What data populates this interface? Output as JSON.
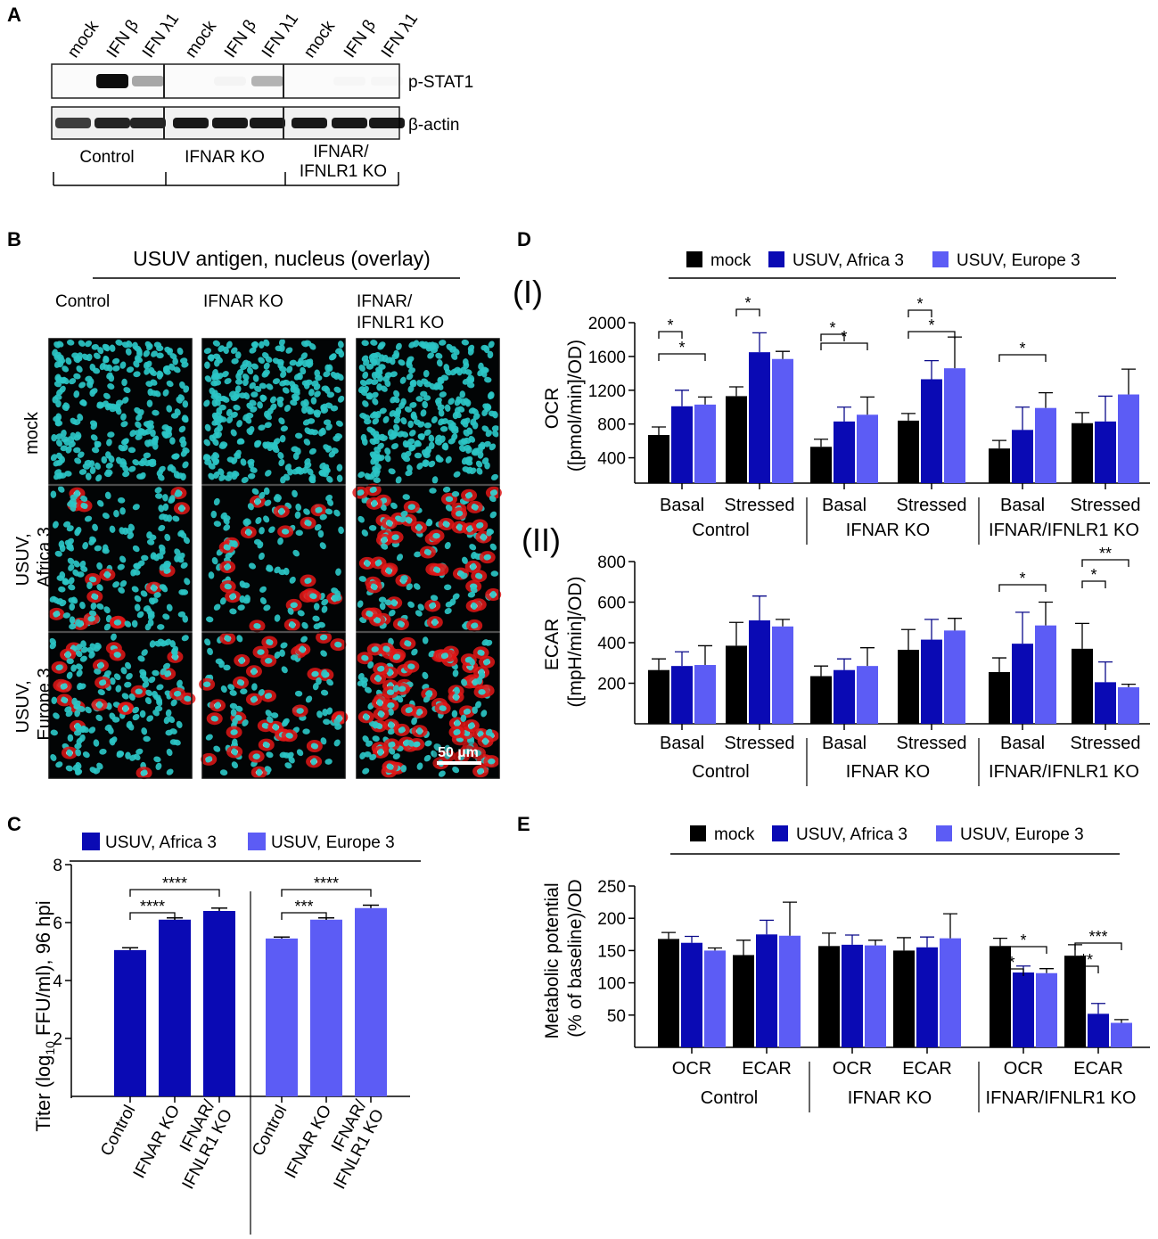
{
  "colors": {
    "mock": "#000000",
    "africa": "#0a0ab4",
    "europe": "#5c5cf5",
    "nucleus": "#2bc6c6",
    "antigen": "#e01818"
  },
  "panels": {
    "A": {
      "letter": "A",
      "lanes": [
        "mock",
        "IFN β",
        "IFN λ1",
        "mock",
        "IFN β",
        "IFN λ1",
        "mock",
        "IFN β",
        "IFN λ1"
      ],
      "blots": [
        "p-STAT1",
        "β-actin"
      ],
      "groups": [
        "Control",
        "IFNAR KO",
        "IFNAR/ IFNLR1 KO"
      ],
      "pstat1_intensity": [
        0,
        1.0,
        0.35,
        0,
        0.03,
        0.3,
        0,
        0.02,
        0.02
      ],
      "actin_intensity": [
        0.75,
        0.85,
        0.85,
        0.9,
        0.9,
        0.9,
        0.9,
        0.9,
        0.9
      ]
    },
    "B": {
      "letter": "B",
      "title": "USUV antigen, nucleus (overlay)",
      "columns": [
        "Control",
        "IFNAR KO",
        "IFNAR/ IFNLR1 KO"
      ],
      "rows": [
        "mock",
        "USUV, Africa 3",
        "USUV, Europe 3"
      ],
      "scale_bar": "50 µm"
    },
    "C": {
      "letter": "C",
      "legend": [
        "USUV, Africa 3",
        "USUV, Europe 3"
      ],
      "ylabel": "Titer (log10 FFU/ml), 96 hpi",
      "categories": [
        "Control",
        "IFNAR KO",
        "IFNAR/ IFNLR1 KO"
      ],
      "significance": [
        "****",
        "****",
        "***",
        "****"
      ]
    },
    "D": {
      "letter": "D",
      "legend": [
        "mock",
        "USUV, Africa 3",
        "USUV, Europe 3"
      ],
      "sub1": "(I)",
      "sub2": "(II)",
      "ylabel1": "OCR ([pmol/min]/OD)",
      "ylabel2": "ECAR ([mpH/min]/OD)",
      "conditions": [
        "Basal",
        "Stressed",
        "Basal",
        "Stressed",
        "Basal",
        "Stressed"
      ],
      "groups": [
        "Control",
        "IFNAR KO",
        "IFNAR/IFNLR1 KO"
      ]
    },
    "E": {
      "letter": "E",
      "legend": [
        "mock",
        "USUV, Africa 3",
        "USUV, Europe 3"
      ],
      "ylabel": "Metabolic potential (% of baseline)/OD",
      "conditions": [
        "OCR",
        "ECAR",
        "OCR",
        "ECAR",
        "OCR",
        "ECAR"
      ],
      "groups": [
        "Control",
        "IFNAR KO",
        "IFNAR/IFNLR1 KO"
      ]
    }
  },
  "chart_data": [
    {
      "id": "C",
      "type": "bar",
      "title": "",
      "ylabel": "Titer (log10 FFU/ml), 96 hpi",
      "ylim": [
        0,
        8
      ],
      "yticks": [
        2,
        4,
        6,
        8
      ],
      "categories": [
        "Control",
        "IFNAR KO",
        "IFNAR/ IFNLR1 KO"
      ],
      "series": [
        {
          "name": "USUV, Africa 3",
          "values": [
            5.05,
            6.1,
            6.4
          ],
          "errors": [
            0.08,
            0.06,
            0.1
          ]
        },
        {
          "name": "USUV, Europe 3",
          "values": [
            5.45,
            6.1,
            6.5
          ],
          "errors": [
            0.05,
            0.06,
            0.1
          ]
        }
      ],
      "annotations": [
        {
          "series": "USUV, Africa 3",
          "from": 0,
          "to": 1,
          "label": "****"
        },
        {
          "series": "USUV, Africa 3",
          "from": 0,
          "to": 2,
          "label": "****"
        },
        {
          "series": "USUV, Europe 3",
          "from": 0,
          "to": 1,
          "label": "***"
        },
        {
          "series": "USUV, Europe 3",
          "from": 0,
          "to": 2,
          "label": "****"
        }
      ]
    },
    {
      "id": "D-I",
      "type": "bar",
      "title": "(I)",
      "ylabel": "OCR ([pmol/min]/OD)",
      "ylim": [
        100,
        2000
      ],
      "yticks": [
        400,
        800,
        1200,
        1600,
        2000
      ],
      "categories": [
        "Control Basal",
        "Control Stressed",
        "IFNAR KO Basal",
        "IFNAR KO Stressed",
        "IFNAR/IFNLR1 KO Basal",
        "IFNAR/IFNLR1 KO Stressed"
      ],
      "series": [
        {
          "name": "mock",
          "values": [
            670,
            1130,
            530,
            840,
            510,
            810
          ],
          "errors": [
            95,
            110,
            90,
            85,
            95,
            125
          ]
        },
        {
          "name": "USUV, Africa 3",
          "values": [
            1010,
            1650,
            830,
            1330,
            730,
            830
          ],
          "errors": [
            190,
            230,
            170,
            220,
            270,
            300
          ]
        },
        {
          "name": "USUV, Europe 3",
          "values": [
            1030,
            1570,
            910,
            1460,
            990,
            1150
          ],
          "errors": [
            90,
            90,
            210,
            370,
            180,
            300
          ]
        }
      ],
      "annotations": [
        {
          "group": 0,
          "from": "mock",
          "to": "USUV, Africa 3",
          "label": "*"
        },
        {
          "group": 0,
          "from": "mock",
          "to": "USUV, Europe 3",
          "label": "*"
        },
        {
          "group": 1,
          "from": "mock",
          "to": "USUV, Africa 3",
          "label": "*"
        },
        {
          "group": 2,
          "from": "mock",
          "to": "USUV, Africa 3",
          "label": "*"
        },
        {
          "group": 2,
          "from": "mock",
          "to": "USUV, Europe 3",
          "label": "*"
        },
        {
          "group": 3,
          "from": "mock",
          "to": "USUV, Africa 3",
          "label": "*"
        },
        {
          "group": 3,
          "from": "mock",
          "to": "USUV, Europe 3",
          "label": "*"
        },
        {
          "group": 4,
          "from": "mock",
          "to": "USUV, Europe 3",
          "label": "*"
        }
      ]
    },
    {
      "id": "D-II",
      "type": "bar",
      "title": "(II)",
      "ylabel": "ECAR ([mpH/min]/OD)",
      "ylim": [
        0,
        800
      ],
      "yticks": [
        200,
        400,
        600,
        800
      ],
      "categories": [
        "Control Basal",
        "Control Stressed",
        "IFNAR KO Basal",
        "IFNAR KO Stressed",
        "IFNAR/IFNLR1 KO Basal",
        "IFNAR/IFNLR1 KO Stressed"
      ],
      "series": [
        {
          "name": "mock",
          "values": [
            265,
            385,
            235,
            365,
            255,
            370
          ],
          "errors": [
            55,
            115,
            50,
            100,
            70,
            125
          ]
        },
        {
          "name": "USUV, Africa 3",
          "values": [
            285,
            510,
            265,
            415,
            395,
            205
          ],
          "errors": [
            70,
            120,
            55,
            100,
            155,
            100
          ]
        },
        {
          "name": "USUV, Europe 3",
          "values": [
            290,
            480,
            285,
            460,
            485,
            180
          ],
          "errors": [
            95,
            35,
            90,
            60,
            115,
            15
          ]
        }
      ],
      "annotations": [
        {
          "group": 4,
          "from": "mock",
          "to": "USUV, Europe 3",
          "label": "*"
        },
        {
          "group": 5,
          "from": "mock",
          "to": "USUV, Africa 3",
          "label": "*"
        },
        {
          "group": 5,
          "from": "mock",
          "to": "USUV, Europe 3",
          "label": "**"
        }
      ]
    },
    {
      "id": "E",
      "type": "bar",
      "title": "",
      "ylabel": "Metabolic potential (% of baseline)/OD",
      "ylim": [
        0,
        250
      ],
      "yticks": [
        50,
        100,
        150,
        200,
        250
      ],
      "categories": [
        "Control OCR",
        "Control ECAR",
        "IFNAR KO OCR",
        "IFNAR KO ECAR",
        "IFNAR/IFNLR1 KO OCR",
        "IFNAR/IFNLR1 KO ECAR"
      ],
      "series": [
        {
          "name": "mock",
          "values": [
            168,
            143,
            157,
            150,
            157,
            142
          ],
          "errors": [
            10,
            23,
            20,
            20,
            12,
            17
          ]
        },
        {
          "name": "USUV, Africa 3",
          "values": [
            162,
            175,
            159,
            155,
            116,
            52
          ],
          "errors": [
            10,
            22,
            15,
            16,
            10,
            16
          ]
        },
        {
          "name": "USUV, Europe 3",
          "values": [
            150,
            173,
            158,
            169,
            115,
            38
          ],
          "errors": [
            4,
            52,
            8,
            38,
            7,
            5
          ]
        }
      ],
      "annotations": [
        {
          "group": 4,
          "from": "mock",
          "to": "USUV, Africa 3",
          "label": "*"
        },
        {
          "group": 4,
          "from": "mock",
          "to": "USUV, Europe 3",
          "label": "*"
        },
        {
          "group": 5,
          "from": "mock",
          "to": "USUV, Africa 3",
          "label": "**"
        },
        {
          "group": 5,
          "from": "mock",
          "to": "USUV, Europe 3",
          "label": "***"
        }
      ]
    }
  ]
}
